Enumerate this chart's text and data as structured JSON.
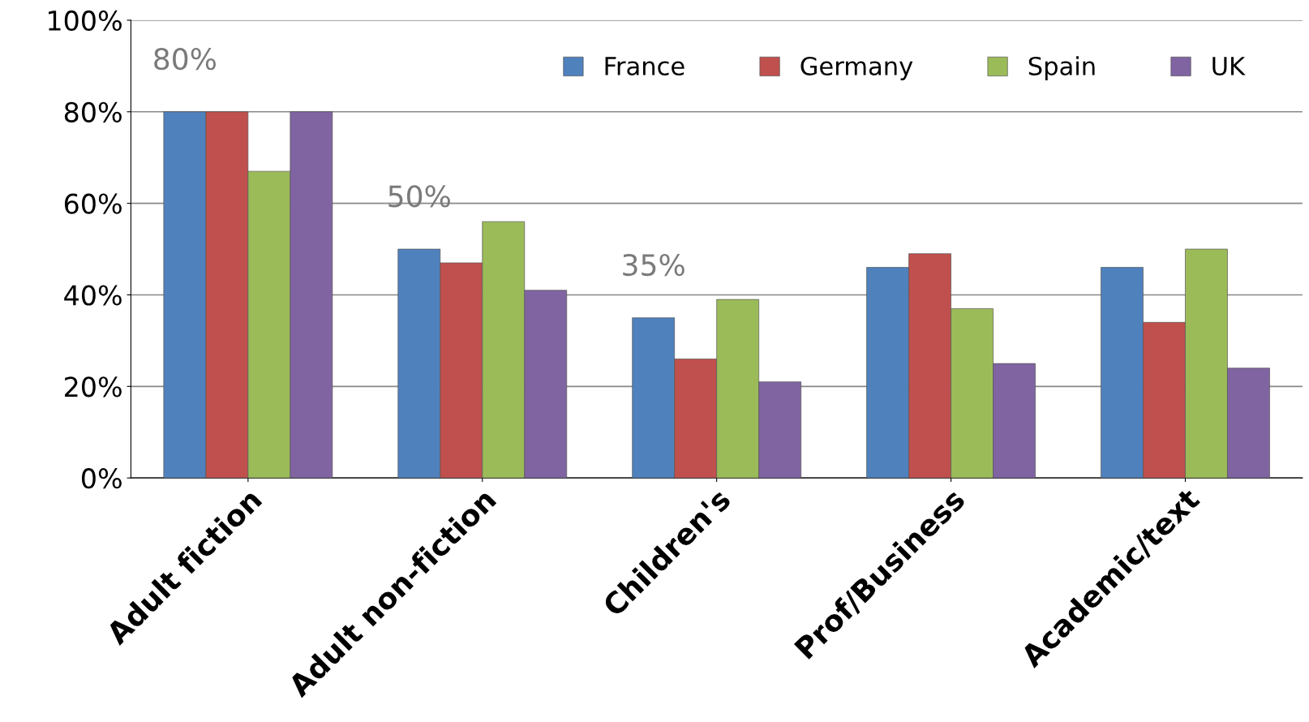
{
  "chart_data": {
    "type": "bar",
    "categories": [
      "Adult fiction",
      "Adult non-fiction",
      "Children's",
      "Prof/Business",
      "Academic/text"
    ],
    "series": [
      {
        "name": "France",
        "color": "#4f81bd",
        "values": [
          80,
          50,
          35,
          46,
          46
        ],
        "value_labels": [
          "80%",
          "50%",
          "35%",
          null,
          null
        ]
      },
      {
        "name": "Germany",
        "color": "#c0504d",
        "values": [
          80,
          47,
          26,
          49,
          34
        ]
      },
      {
        "name": "Spain",
        "color": "#9bbb59",
        "values": [
          67,
          56,
          39,
          37,
          50
        ]
      },
      {
        "name": "UK",
        "color": "#8064a2",
        "values": [
          80,
          41,
          21,
          25,
          24
        ]
      }
    ],
    "ylim": [
      0,
      100
    ],
    "yticks": [
      {
        "value": 0,
        "label": "0%"
      },
      {
        "value": 20,
        "label": "20%"
      },
      {
        "value": 40,
        "label": "40%"
      },
      {
        "value": 60,
        "label": "60%"
      },
      {
        "value": 80,
        "label": "80%"
      },
      {
        "value": 100,
        "label": "100%"
      }
    ],
    "grid": "y",
    "legend": "top right"
  }
}
